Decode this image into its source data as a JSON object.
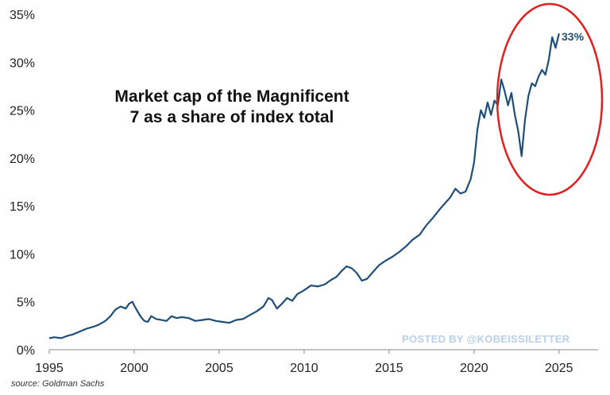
{
  "chart_data": {
    "type": "line",
    "title_lines": [
      "Market cap of the Magnificent",
      "7 as a share of index total"
    ],
    "xlabel": "",
    "ylabel": "",
    "xlim": [
      1995,
      2027.3
    ],
    "ylim": [
      0,
      35
    ],
    "x_ticks": [
      1995,
      2000,
      2005,
      2010,
      2015,
      2020,
      2025
    ],
    "y_ticks": [
      "0%",
      "5%",
      "10%",
      "15%",
      "20%",
      "25%",
      "30%",
      "35%"
    ],
    "y_tick_values": [
      0,
      5,
      10,
      15,
      20,
      25,
      30,
      35
    ],
    "grid": false,
    "line_color": "#1f4e79",
    "highlight_color": "#e02020",
    "end_label": "33%",
    "series": [
      {
        "x": [
          1995.0,
          1995.3,
          1995.7,
          1996.0,
          1996.4,
          1996.8,
          1997.2,
          1997.6,
          1997.9,
          1998.3,
          1998.6,
          1998.9,
          1999.2,
          1999.5,
          1999.7,
          1999.9,
          2000.0,
          2000.2,
          2000.4,
          2000.6,
          2000.8,
          2001.0,
          2001.3,
          2001.6,
          2001.9,
          2002.2,
          2002.5,
          2002.8,
          2003.2,
          2003.6,
          2004.0,
          2004.4,
          2004.8,
          2005.2,
          2005.6,
          2006.0,
          2006.4,
          2006.8,
          2007.2,
          2007.6,
          2007.9,
          2008.1,
          2008.4,
          2008.7,
          2009.0,
          2009.3,
          2009.6,
          2010.0,
          2010.4,
          2010.8,
          2011.2,
          2011.6,
          2011.9,
          2012.2,
          2012.5,
          2012.8,
          2013.1,
          2013.4,
          2013.7,
          2014.0,
          2014.4,
          2014.8,
          2015.2,
          2015.6,
          2016.0,
          2016.4,
          2016.8,
          2017.2,
          2017.6,
          2018.0,
          2018.3,
          2018.6,
          2018.9,
          2019.2,
          2019.5,
          2019.8,
          2020.0,
          2020.2,
          2020.4,
          2020.6,
          2020.8,
          2021.0,
          2021.2,
          2021.4,
          2021.6,
          2021.8,
          2022.0,
          2022.2,
          2022.4,
          2022.6,
          2022.8,
          2023.0,
          2023.2,
          2023.4,
          2023.6,
          2023.8,
          2024.0,
          2024.2,
          2024.4,
          2024.6,
          2024.8,
          2025.0
        ],
        "y": [
          1.2,
          1.3,
          1.2,
          1.4,
          1.6,
          1.9,
          2.2,
          2.4,
          2.6,
          3.0,
          3.5,
          4.2,
          4.5,
          4.3,
          4.8,
          5.0,
          4.6,
          4.0,
          3.4,
          3.0,
          2.9,
          3.5,
          3.2,
          3.1,
          3.0,
          3.5,
          3.3,
          3.4,
          3.3,
          3.0,
          3.1,
          3.2,
          3.0,
          2.9,
          2.8,
          3.1,
          3.2,
          3.6,
          4.0,
          4.5,
          5.4,
          5.2,
          4.3,
          4.8,
          5.4,
          5.1,
          5.8,
          6.2,
          6.7,
          6.6,
          6.8,
          7.3,
          7.6,
          8.2,
          8.7,
          8.5,
          8.0,
          7.2,
          7.4,
          8.0,
          8.8,
          9.3,
          9.7,
          10.2,
          10.8,
          11.5,
          12.0,
          13.0,
          13.8,
          14.7,
          15.3,
          15.9,
          16.8,
          16.3,
          16.5,
          17.8,
          19.5,
          23.0,
          25.0,
          24.2,
          25.8,
          24.5,
          26.0,
          25.5,
          28.2,
          27.0,
          25.5,
          26.8,
          24.5,
          22.8,
          20.2,
          24.0,
          26.5,
          27.8,
          27.5,
          28.5,
          29.2,
          28.7,
          30.3,
          32.6,
          31.5,
          33.0
        ]
      }
    ],
    "annotations": [
      {
        "type": "ellipse",
        "around": "2021-2025 peak region"
      }
    ]
  },
  "watermark": "POSTED BY @KOBEISSILETTER",
  "source": "source: Goldman Sachs"
}
